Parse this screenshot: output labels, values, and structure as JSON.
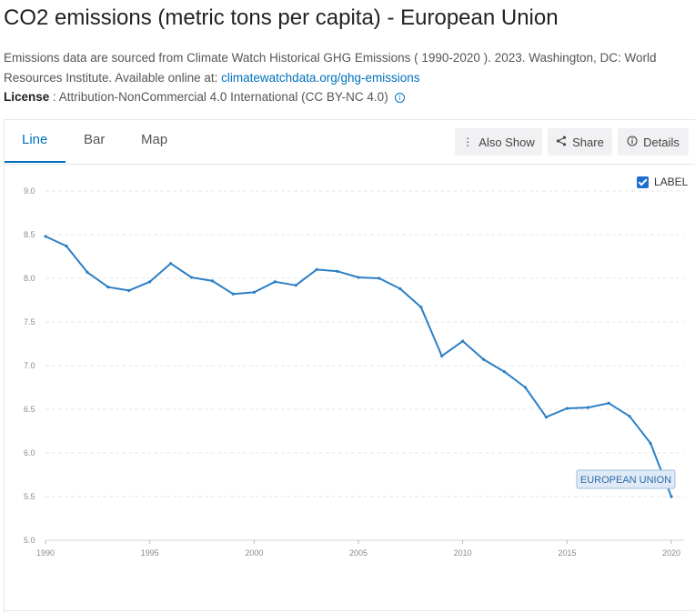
{
  "page": {
    "title": "CO2 emissions (metric tons per capita) - European Union",
    "source_prefix": "Emissions data are sourced from Climate Watch Historical GHG Emissions ( 1990-2020 ). 2023. Washington, DC: World Resources Institute. Available online at: ",
    "source_link": "climatewatchdata.org/ghg-emissions",
    "license_label": "License",
    "license_text": " : Attribution-NonCommercial 4.0 International (CC BY-NC 4.0)",
    "info_icon": "i"
  },
  "tabs": [
    {
      "label": "Line",
      "active": true
    },
    {
      "label": "Bar",
      "active": false
    },
    {
      "label": "Map",
      "active": false
    }
  ],
  "toolbar": {
    "also_show": "Also Show",
    "share": "Share",
    "details": "Details"
  },
  "label_toggle": {
    "label": "LABEL",
    "checked": true
  },
  "colors": {
    "line": "#2c7fc6",
    "accent": "#0071bc",
    "end_label_bg": "#dfeaf6",
    "end_label_border": "#9dbde0",
    "end_label_text": "#2c6ca8"
  },
  "chart_data": {
    "type": "line",
    "title": "",
    "xlabel": "",
    "ylabel": "",
    "xlim": [
      1990,
      2020
    ],
    "ylim": [
      5.0,
      9.0
    ],
    "x_ticks": [
      "1990",
      "1995",
      "2000",
      "2005",
      "2010",
      "2015",
      "2020"
    ],
    "y_ticks": [
      "5.0",
      "5.5",
      "6.0",
      "6.5",
      "7.0",
      "7.5",
      "8.0",
      "8.5",
      "9.0"
    ],
    "grid": true,
    "series": [
      {
        "name": "EUROPEAN UNION",
        "x": [
          1990,
          1991,
          1992,
          1993,
          1994,
          1995,
          1996,
          1997,
          1998,
          1999,
          2000,
          2001,
          2002,
          2003,
          2004,
          2005,
          2006,
          2007,
          2008,
          2009,
          2010,
          2011,
          2012,
          2013,
          2014,
          2015,
          2016,
          2017,
          2018,
          2019,
          2020
        ],
        "values": [
          8.48,
          8.37,
          8.07,
          7.9,
          7.86,
          7.96,
          8.17,
          8.01,
          7.97,
          7.82,
          7.84,
          7.96,
          7.92,
          8.1,
          8.08,
          8.01,
          8.0,
          7.88,
          7.67,
          7.11,
          7.28,
          7.07,
          6.93,
          6.75,
          6.41,
          6.51,
          6.52,
          6.57,
          6.42,
          6.11,
          5.5
        ]
      }
    ]
  }
}
